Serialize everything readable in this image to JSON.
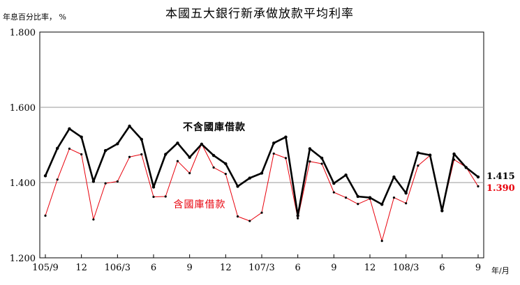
{
  "chart_data": {
    "type": "line",
    "title": "本國五大銀行新承做放款平均利率",
    "ylabel": "年息百分比率，  %",
    "xlabel": "年/月",
    "ylim": [
      1.2,
      1.8
    ],
    "yticks": [
      "1.200",
      "1.400",
      "1.600",
      "1.800"
    ],
    "grid": "horizontal",
    "x_tick_labels": [
      {
        "index": 0,
        "label": "105/9"
      },
      {
        "index": 3,
        "label": "12"
      },
      {
        "index": 6,
        "label": "106/3"
      },
      {
        "index": 9,
        "label": "6"
      },
      {
        "index": 12,
        "label": "9"
      },
      {
        "index": 15,
        "label": "12"
      },
      {
        "index": 18,
        "label": "107/3"
      },
      {
        "index": 21,
        "label": "6"
      },
      {
        "index": 24,
        "label": "9"
      },
      {
        "index": 27,
        "label": "12"
      },
      {
        "index": 30,
        "label": "108/3"
      },
      {
        "index": 33,
        "label": "6"
      },
      {
        "index": 36,
        "label": "9"
      }
    ],
    "series": [
      {
        "name": "不含國庫借款",
        "color": "#000000",
        "values": [
          1.418,
          1.491,
          1.543,
          1.521,
          1.403,
          1.485,
          1.503,
          1.55,
          1.515,
          1.388,
          1.475,
          1.505,
          1.467,
          1.502,
          1.472,
          1.45,
          1.39,
          1.412,
          1.425,
          1.505,
          1.521,
          1.312,
          1.49,
          1.465,
          1.398,
          1.42,
          1.363,
          1.36,
          1.342,
          1.415,
          1.372,
          1.479,
          1.473,
          1.325,
          1.476,
          1.44,
          1.415
        ],
        "end_label": "1.415"
      },
      {
        "name": "含國庫借款",
        "color": "#e8000b",
        "values": [
          1.312,
          1.408,
          1.49,
          1.475,
          1.302,
          1.398,
          1.403,
          1.468,
          1.475,
          1.362,
          1.363,
          1.457,
          1.425,
          1.503,
          1.44,
          1.423,
          1.31,
          1.298,
          1.32,
          1.477,
          1.465,
          1.305,
          1.456,
          1.45,
          1.374,
          1.36,
          1.343,
          1.357,
          1.245,
          1.36,
          1.345,
          1.445,
          1.472,
          1.325,
          1.461,
          1.441,
          1.39
        ],
        "end_label": "1.390"
      }
    ]
  }
}
